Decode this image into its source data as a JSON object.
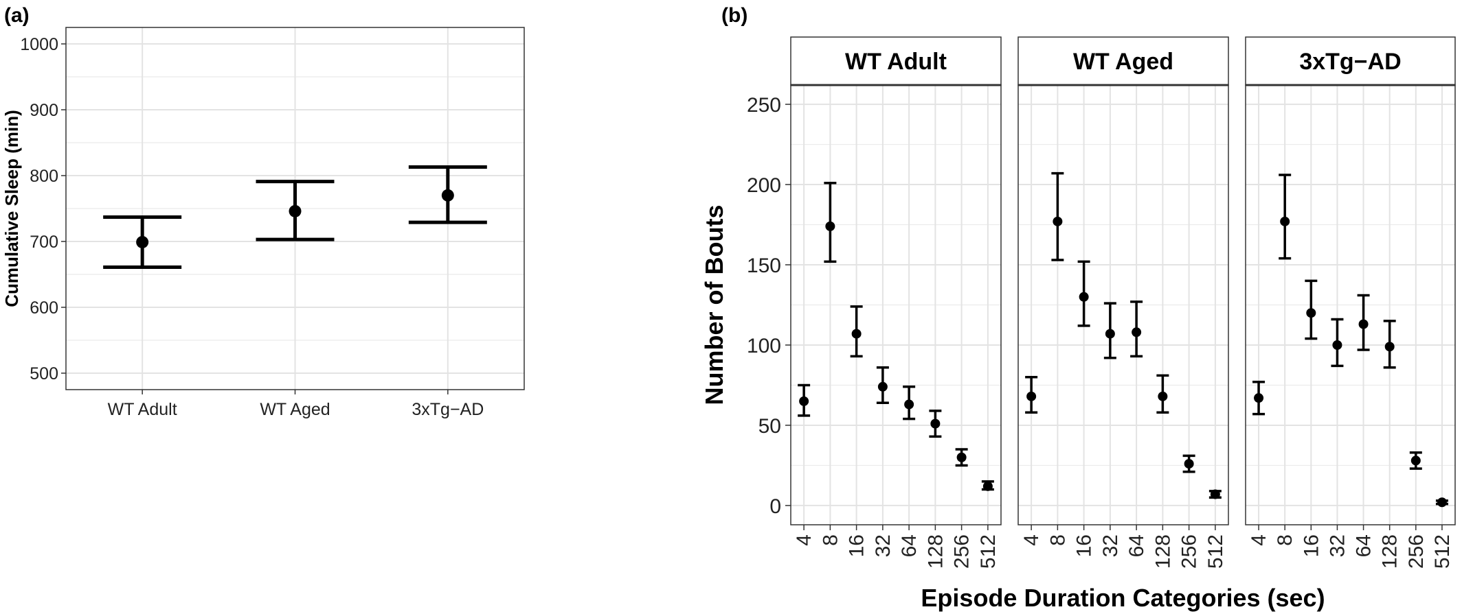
{
  "panel_labels": {
    "a": "(a)",
    "b": "(b)"
  },
  "chart_data": [
    {
      "panel": "(a)",
      "type": "scatter",
      "title": "",
      "xlabel": "",
      "ylabel": "Cumulative Sleep (min)",
      "categories": [
        "WT Adult",
        "WT Aged",
        "3xTg−AD"
      ],
      "ylim": [
        475,
        1025
      ],
      "yticks": [
        500,
        600,
        700,
        800,
        900,
        1000
      ],
      "grid": true,
      "error_bars": true,
      "series": [
        {
          "values": [
            699,
            746,
            770
          ],
          "lower": [
            661,
            703,
            729
          ],
          "upper": [
            737,
            791,
            813
          ]
        }
      ]
    },
    {
      "panel": "(b)",
      "type": "scatter",
      "title": "",
      "xlabel": "Episode Duration Categories (sec)",
      "ylabel": "Number of Bouts",
      "categories": [
        "4",
        "8",
        "16",
        "32",
        "64",
        "128",
        "256",
        "512"
      ],
      "ylim": [
        -12,
        262
      ],
      "yticks": [
        0,
        50,
        100,
        150,
        200,
        250
      ],
      "grid": true,
      "error_bars": true,
      "facets": [
        {
          "label": "WT Adult",
          "values": [
            65,
            174,
            107,
            74,
            63,
            51,
            30,
            12
          ],
          "lower": [
            56,
            152,
            93,
            64,
            54,
            43,
            25,
            10
          ],
          "upper": [
            75,
            201,
            124,
            86,
            74,
            59,
            35,
            15
          ]
        },
        {
          "label": "WT Aged",
          "values": [
            68,
            177,
            130,
            107,
            108,
            68,
            26,
            7
          ],
          "lower": [
            58,
            153,
            112,
            92,
            93,
            58,
            21,
            5
          ],
          "upper": [
            80,
            207,
            152,
            126,
            127,
            81,
            31,
            9
          ]
        },
        {
          "label": "3xTg−AD",
          "values": [
            67,
            177,
            120,
            100,
            113,
            99,
            28,
            2
          ],
          "lower": [
            57,
            154,
            104,
            87,
            97,
            86,
            23,
            1
          ],
          "upper": [
            77,
            206,
            140,
            116,
            131,
            115,
            33,
            3
          ]
        }
      ]
    }
  ]
}
